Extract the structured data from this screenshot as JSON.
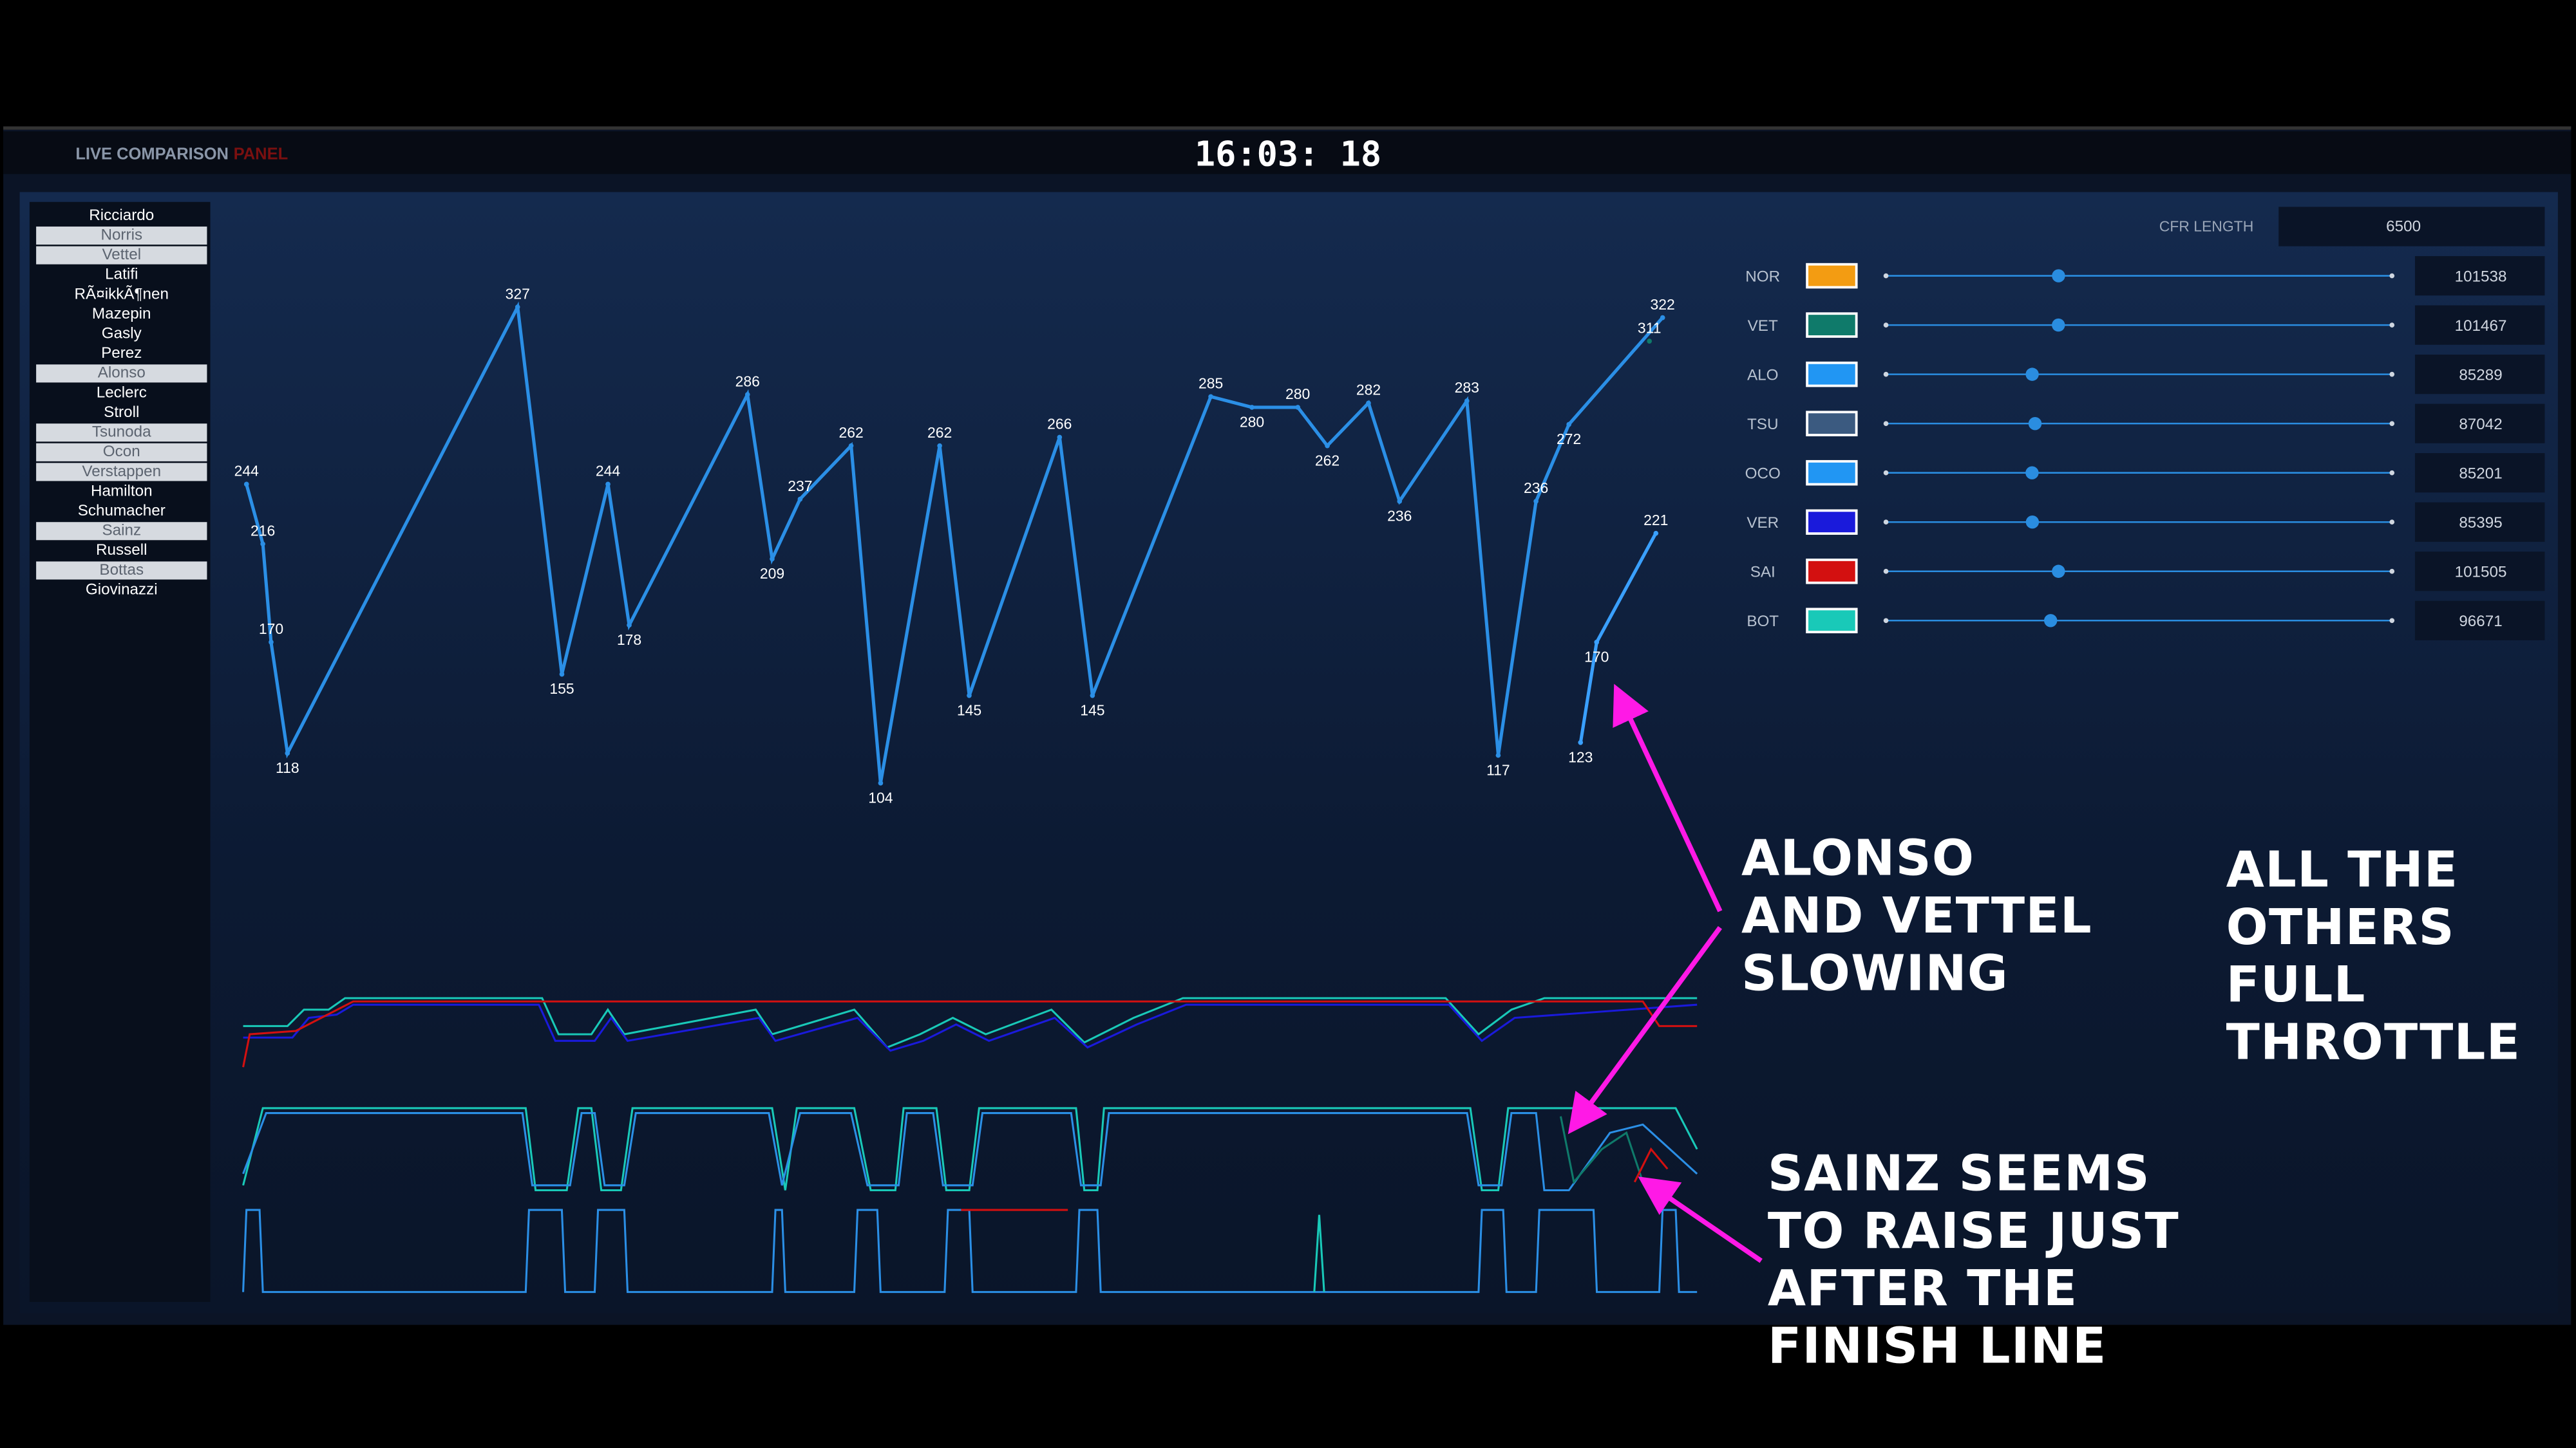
{
  "header": {
    "title_prefix": "LIVE COMPARISON",
    "title_suffix": "PANEL",
    "clock": "16:03: 18"
  },
  "drivers": [
    {
      "name": "Ricciardo",
      "selected": false
    },
    {
      "name": "Norris",
      "selected": true
    },
    {
      "name": "Vettel",
      "selected": true
    },
    {
      "name": "Latifi",
      "selected": false
    },
    {
      "name": "RÃ¤ikkÃ¶nen",
      "selected": false
    },
    {
      "name": "Mazepin",
      "selected": false
    },
    {
      "name": "Gasly",
      "selected": false
    },
    {
      "name": "Perez",
      "selected": false
    },
    {
      "name": "Alonso",
      "selected": true
    },
    {
      "name": "Leclerc",
      "selected": false
    },
    {
      "name": "Stroll",
      "selected": false
    },
    {
      "name": "Tsunoda",
      "selected": true
    },
    {
      "name": "Ocon",
      "selected": true
    },
    {
      "name": "Verstappen",
      "selected": true
    },
    {
      "name": "Hamilton",
      "selected": false
    },
    {
      "name": "Schumacher",
      "selected": false
    },
    {
      "name": "Sainz",
      "selected": true
    },
    {
      "name": "Russell",
      "selected": false
    },
    {
      "name": "Bottas",
      "selected": true
    },
    {
      "name": "Giovinazzi",
      "selected": false
    }
  ],
  "settings": {
    "cfr_label": "CFR LENGTH",
    "cfr_length": 6500,
    "rows": [
      {
        "code": "NOR",
        "color": "#f39c12",
        "value": 101538
      },
      {
        "code": "VET",
        "color": "#0f7a6a",
        "value": 101467
      },
      {
        "code": "ALO",
        "color": "#2196f3",
        "value": 85289
      },
      {
        "code": "TSU",
        "color": "#3b5a80",
        "value": 87042
      },
      {
        "code": "OCO",
        "color": "#2196f3",
        "value": 85201
      },
      {
        "code": "VER",
        "color": "#1a1adb",
        "value": 85395
      },
      {
        "code": "SAI",
        "color": "#d31010",
        "value": 101505
      },
      {
        "code": "BOT",
        "color": "#19c9b8",
        "value": 96671
      }
    ]
  },
  "chart_data": {
    "type": "line",
    "series": [
      {
        "color": "#2b8fe6",
        "x": [
          15,
          88,
          125,
          198,
          1227,
          1425,
          1631,
          1726,
          2255,
          2365,
          2490,
          2718,
          2850,
          3114,
          3246,
          3650,
          3797,
          4326,
          4510,
          4715,
          4847,
          5031,
          5170,
          5471,
          5611,
          5780,
          5927,
          6346
        ],
        "values": [
          244,
          216,
          170,
          118,
          327,
          155,
          244,
          178,
          286,
          209,
          237,
          262,
          104,
          262,
          145,
          266,
          145,
          285,
          280,
          280,
          262,
          282,
          236,
          283,
          117,
          236,
          272,
          322
        ]
      },
      {
        "color": "#3aa0ff",
        "x": [
          5979,
          6051,
          6316
        ],
        "values": [
          123,
          170,
          221
        ]
      },
      {
        "color": "#0f7a6a",
        "x": [
          6287
        ],
        "values": [
          311
        ]
      }
    ]
  },
  "annotations": [
    {
      "lines": [
        "ALONSO",
        "AND VETTEL",
        "SLOWING"
      ]
    },
    {
      "lines": [
        "ALL THE",
        "OTHERS",
        "FULL",
        "THROTTLE"
      ]
    },
    {
      "lines": [
        "SAINZ SEEMS",
        "TO RAISE JUST",
        "AFTER THE",
        "FINISH LINE"
      ]
    }
  ]
}
